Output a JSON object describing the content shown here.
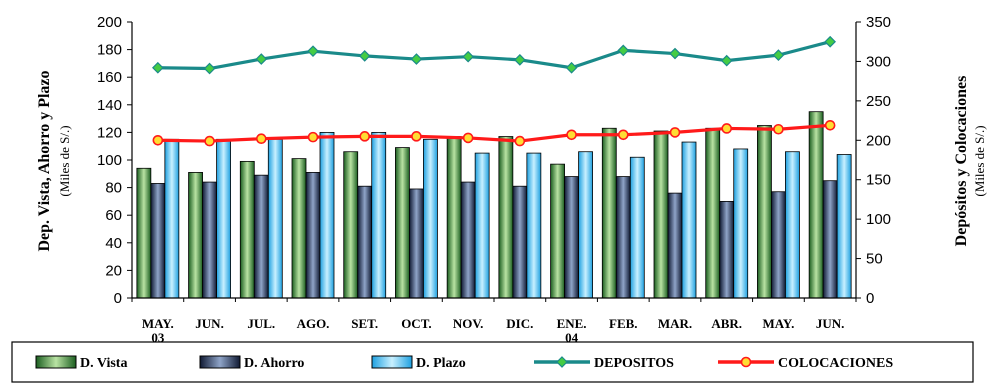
{
  "chart_data": {
    "type": "bar",
    "categories": [
      "MAY.\n03",
      "JUN.",
      "JUL.",
      "AGO.",
      "SET.",
      "OCT.",
      "NOV.",
      "DIC.",
      "ENE.\n04",
      "FEB.",
      "MAR.",
      "ABR.",
      "MAY.",
      "JUN."
    ],
    "left_axis": {
      "title": "Dep. Vista, Ahorro y Plazo",
      "subtitle": "(Miles de S/.)",
      "ylim": [
        0,
        200
      ],
      "ticks": [
        0,
        20,
        40,
        60,
        80,
        100,
        120,
        140,
        160,
        180,
        200
      ]
    },
    "right_axis": {
      "title": "Depósitos y Colocaciones",
      "subtitle": "(Miles de S/.)",
      "ylim": [
        0,
        350
      ],
      "ticks": [
        0,
        50,
        100,
        150,
        200,
        250,
        300,
        350
      ]
    },
    "series": [
      {
        "name": "D. Vista",
        "type": "bar",
        "axis": "left",
        "color": "#2e7d32",
        "values": [
          94,
          91,
          99,
          101,
          106,
          109,
          117,
          117,
          97,
          123,
          121,
          123,
          125,
          135
        ]
      },
      {
        "name": "D. Ahorro",
        "type": "bar",
        "axis": "left",
        "color": "#1f2a44",
        "values": [
          83,
          84,
          89,
          91,
          81,
          79,
          84,
          81,
          88,
          88,
          76,
          70,
          77,
          85
        ]
      },
      {
        "name": "D. Plazo",
        "type": "bar",
        "axis": "left",
        "color": "#33bbee",
        "values": [
          115,
          115,
          115,
          120,
          120,
          115,
          105,
          105,
          106,
          102,
          113,
          108,
          106,
          104
        ]
      },
      {
        "name": "DEPOSITOS",
        "type": "line",
        "axis": "right",
        "color": "#1a8a8a",
        "marker_fill": "#44cc44",
        "values": [
          292,
          291,
          303,
          313,
          307,
          303,
          306,
          302,
          292,
          314,
          310,
          301,
          308,
          325
        ]
      },
      {
        "name": "COLOCACIONES",
        "type": "line",
        "axis": "right",
        "color": "#ff1a1a",
        "marker_fill": "#ffdd33",
        "values": [
          200,
          199,
          202,
          204,
          205,
          205,
          203,
          199,
          207,
          207,
          210,
          215,
          214,
          219
        ]
      }
    ],
    "grid": false,
    "legend_position": "bottom"
  }
}
